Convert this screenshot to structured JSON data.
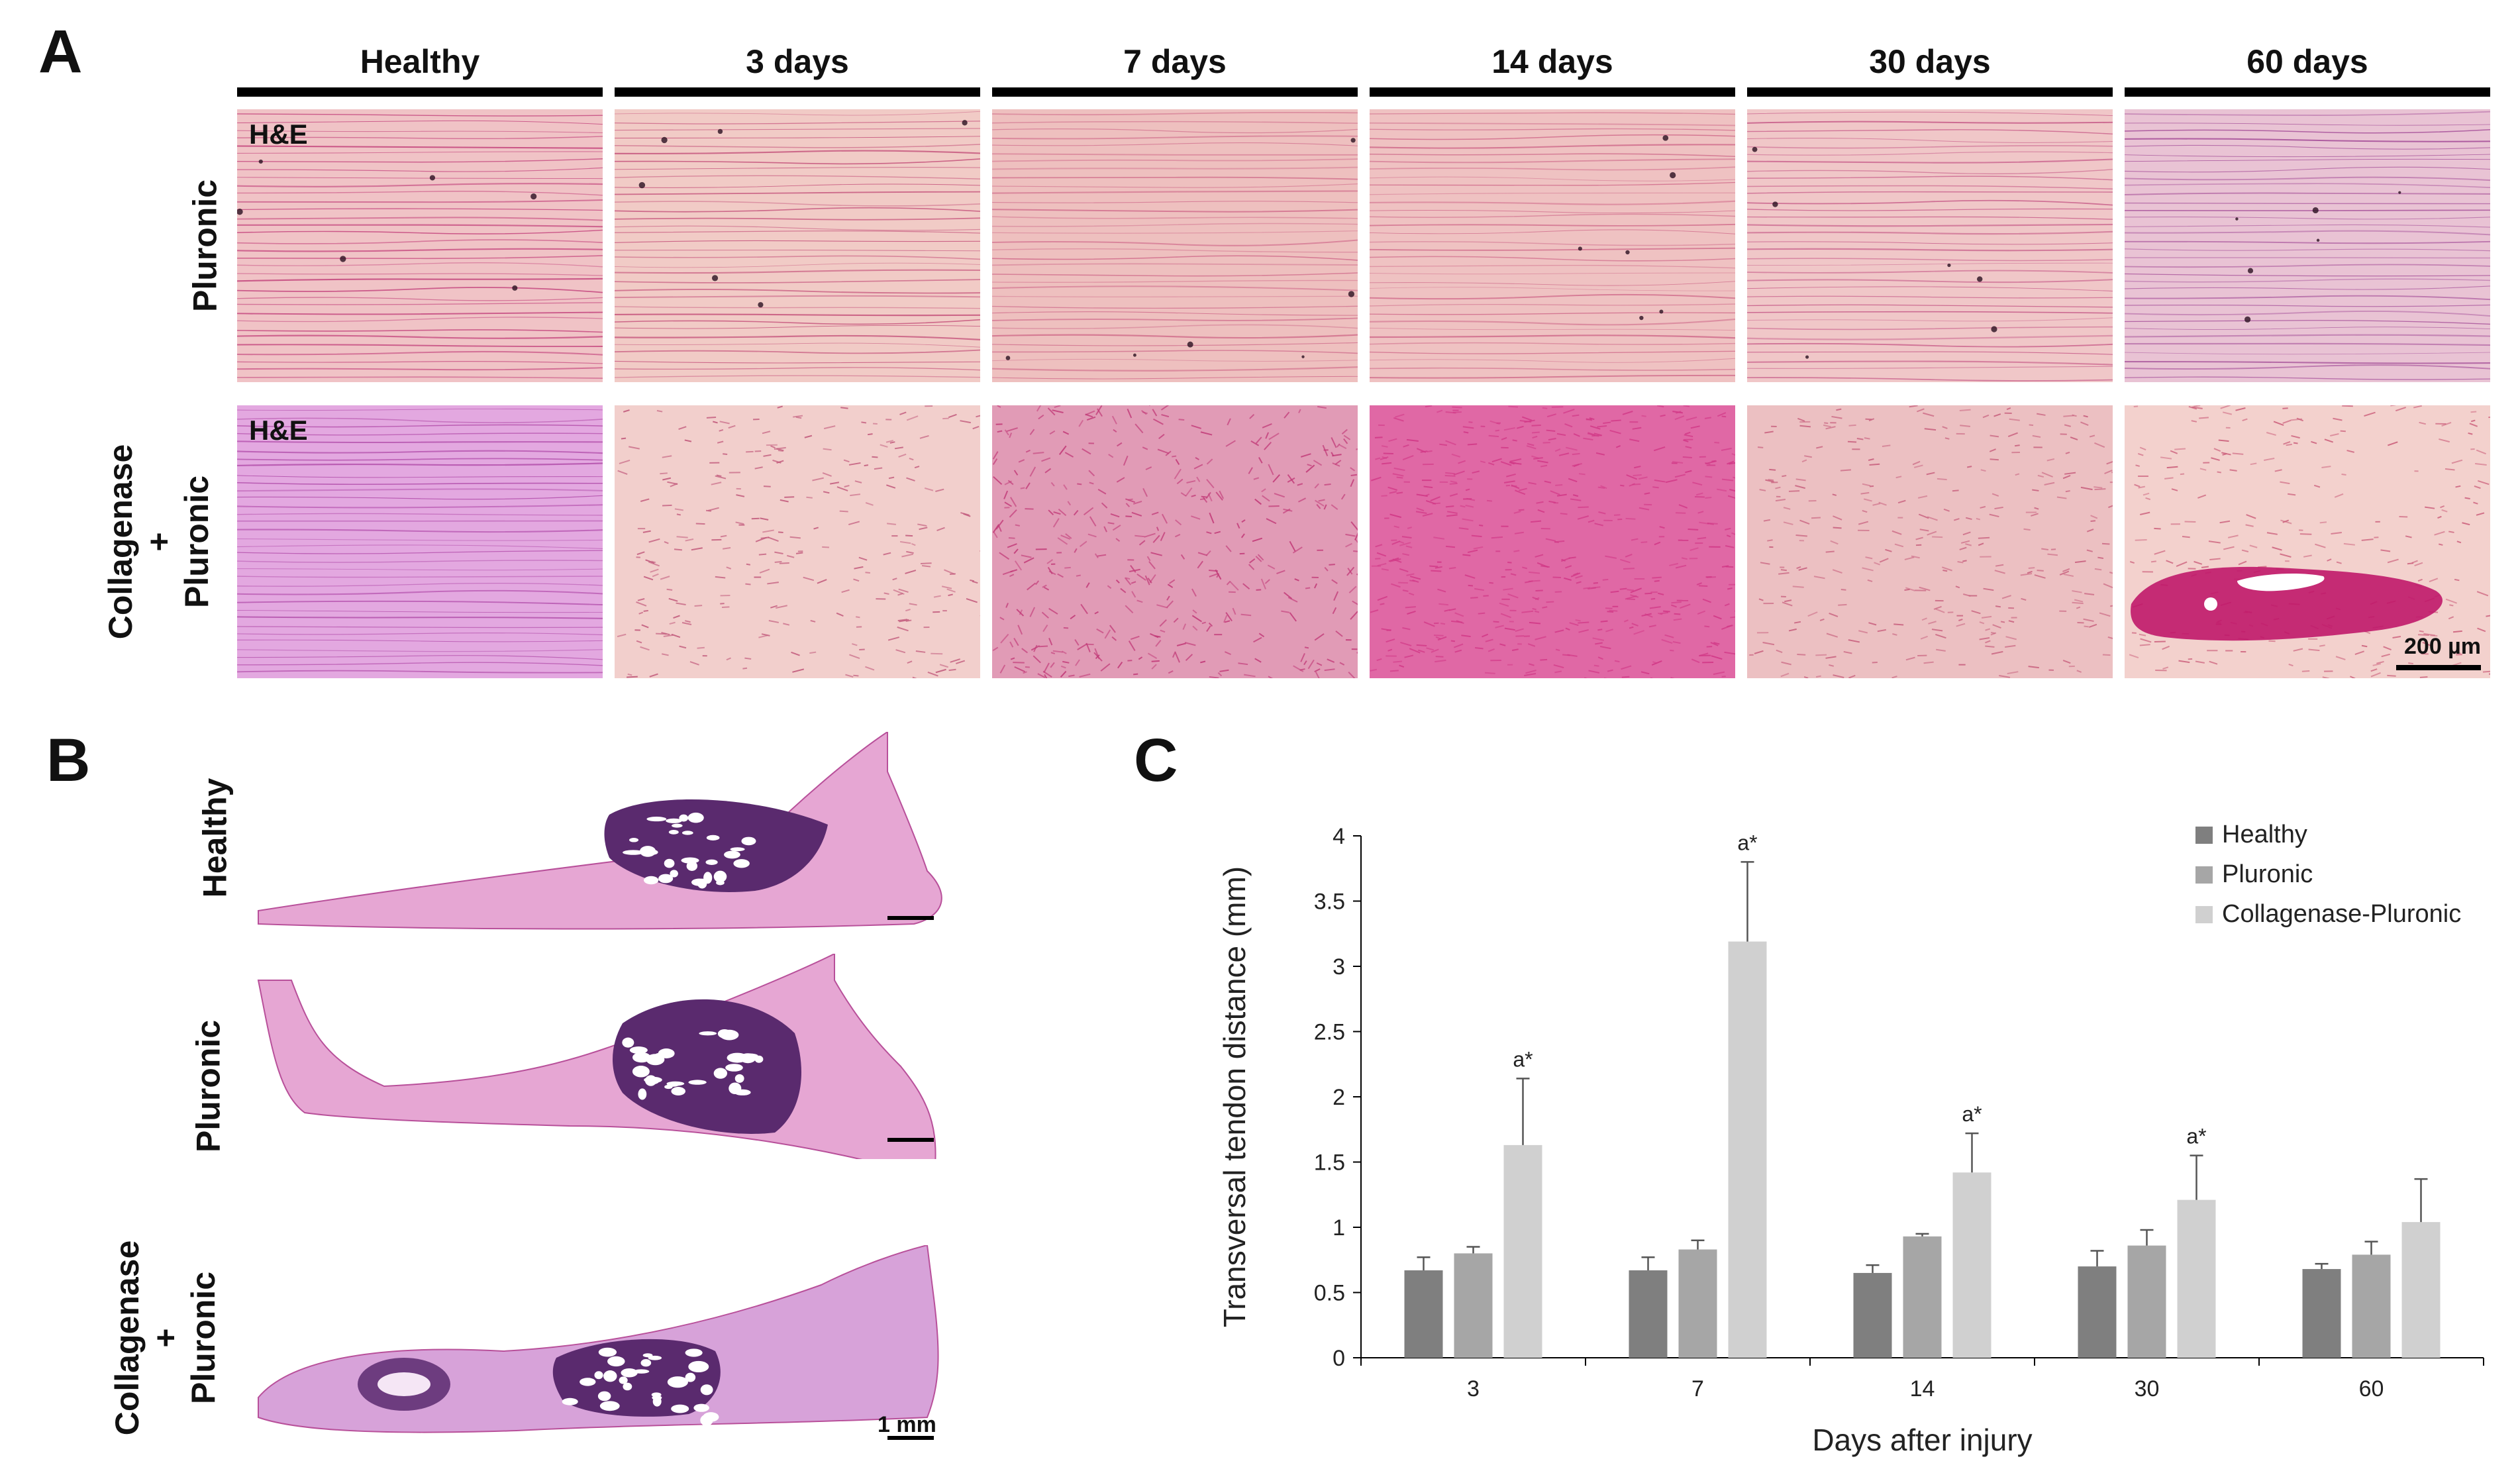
{
  "panel_a": {
    "letter": "A",
    "columns": [
      "Healthy",
      "3 days",
      "7 days",
      "14 days",
      "30 days",
      "60 days"
    ],
    "rows": [
      {
        "lines": [
          "Pluronic"
        ]
      },
      {
        "lines": [
          "Collagenase",
          "+",
          "Pluronic"
        ]
      }
    ],
    "stain_label": "H&E",
    "scale_bar": "200 µm"
  },
  "panel_b": {
    "letter": "B",
    "rows": [
      {
        "lines": [
          "Healthy"
        ]
      },
      {
        "lines": [
          "Pluronic"
        ]
      },
      {
        "lines": [
          "Collagenase",
          "+",
          "Pluronic"
        ]
      }
    ],
    "scale_bar": "1 mm"
  },
  "panel_c": {
    "letter": "C",
    "chart_data": {
      "type": "bar",
      "xlabel": "Days after injury",
      "ylabel": "Transversal tendon distance (mm)",
      "ylim": [
        0,
        4
      ],
      "yticks": [
        "0",
        "0.5",
        "1",
        "1.5",
        "2",
        "2.5",
        "3",
        "3.5",
        "4"
      ],
      "categories": [
        "3",
        "7",
        "14",
        "30",
        "60"
      ],
      "series": [
        {
          "name": "Healthy",
          "color": "#7f7f7f",
          "values": [
            0.67,
            0.67,
            0.65,
            0.7,
            0.68
          ],
          "errors": [
            0.1,
            0.1,
            0.06,
            0.12,
            0.04
          ]
        },
        {
          "name": "Pluronic",
          "color": "#a6a6a6",
          "values": [
            0.8,
            0.83,
            0.93,
            0.86,
            0.79
          ],
          "errors": [
            0.05,
            0.07,
            0.02,
            0.12,
            0.1
          ]
        },
        {
          "name": "Collagenase-Pluronic",
          "color": "#d0d0d0",
          "values": [
            1.63,
            3.19,
            1.42,
            1.21,
            1.04
          ],
          "errors": [
            0.51,
            0.61,
            0.3,
            0.34,
            0.33
          ]
        }
      ],
      "annotations": [
        {
          "category": "3",
          "series": "Collagenase-Pluronic",
          "text": "a*"
        },
        {
          "category": "7",
          "series": "Collagenase-Pluronic",
          "text": "a*"
        },
        {
          "category": "14",
          "series": "Collagenase-Pluronic",
          "text": "a*"
        },
        {
          "category": "30",
          "series": "Collagenase-Pluronic",
          "text": "a*"
        }
      ],
      "legend": "top-right",
      "grid": false
    }
  },
  "colors": {
    "he_pink": "#e8aab0",
    "he_light_pink": "#f3c7c4",
    "he_magenta": "#d65aa0",
    "he_purple": "#5a2a6e",
    "he_lavender": "#e2a4e0"
  }
}
